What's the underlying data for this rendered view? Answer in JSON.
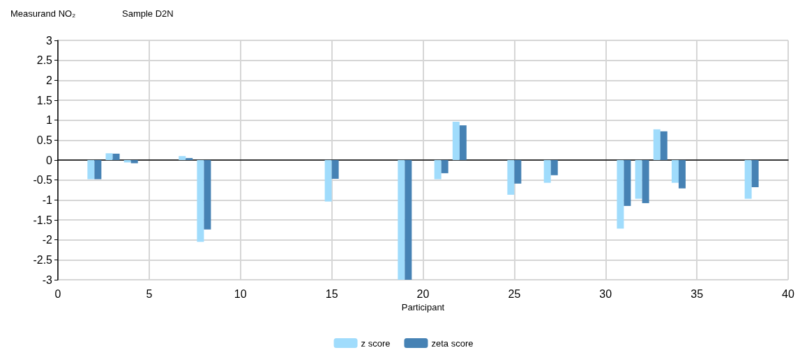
{
  "chart_data": {
    "type": "bar",
    "title": "Measurand NO₂",
    "subtitle": "Sample D2N",
    "xlabel": "Participant",
    "x": [
      2,
      3,
      4,
      7,
      8,
      15,
      19,
      21,
      22,
      25,
      27,
      31,
      32,
      33,
      34,
      38
    ],
    "series": [
      {
        "name": "z score",
        "color": "#a0dcfc",
        "values": [
          -0.48,
          0.17,
          -0.06,
          0.1,
          -2.05,
          -1.04,
          -3,
          -0.48,
          0.96,
          -0.87,
          -0.57,
          -1.72,
          -0.97,
          0.77,
          -0.57,
          -0.97
        ]
      },
      {
        "name": "zeta score",
        "color": "#4682b4",
        "values": [
          -0.48,
          0.16,
          -0.08,
          0.05,
          -1.74,
          -0.47,
          -3,
          -0.33,
          0.87,
          -0.59,
          -0.38,
          -1.15,
          -1.08,
          0.72,
          -0.71,
          -0.68
        ]
      }
    ],
    "xlim": [
      0,
      40
    ],
    "xticks": [
      0,
      5,
      10,
      15,
      20,
      25,
      30,
      35,
      40
    ],
    "ylim": [
      -3,
      3
    ],
    "yticks": [
      -3,
      -2.5,
      -2,
      -1.5,
      -1,
      -0.5,
      0,
      0.5,
      1,
      1.5,
      2,
      2.5,
      3
    ],
    "grid": true,
    "legend": "bottom"
  }
}
